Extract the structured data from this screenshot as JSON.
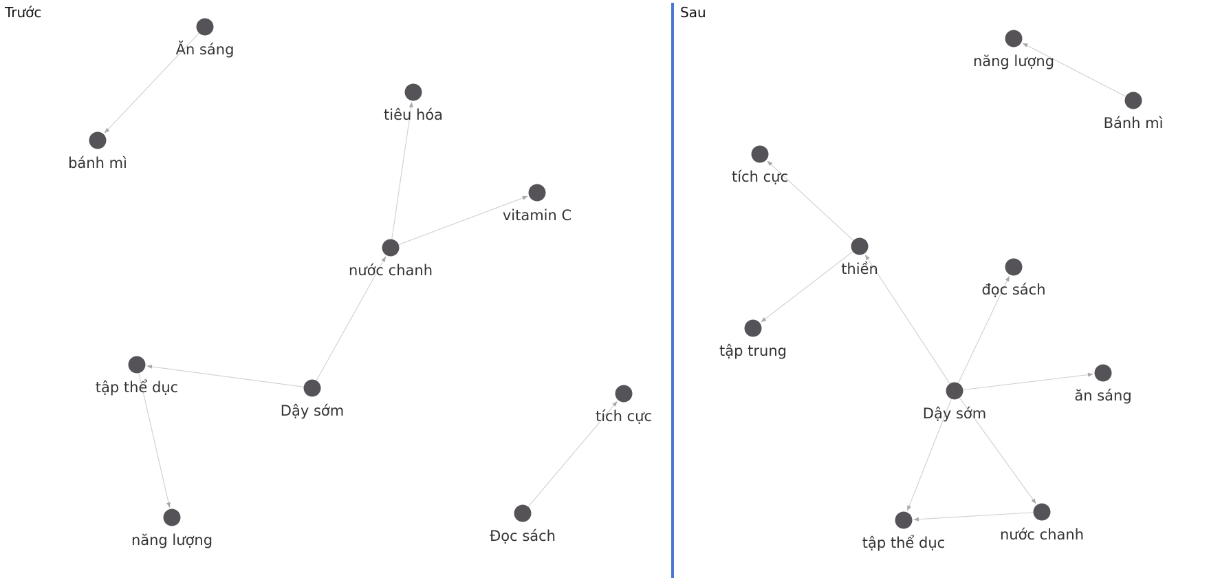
{
  "panels": [
    {
      "id": "left",
      "title": "Trước",
      "nodes": [
        {
          "id": "an-sang",
          "label": "Ăn sáng"
        },
        {
          "id": "banh-mi",
          "label": "bánh mì"
        },
        {
          "id": "tieu-hoa",
          "label": "tiêu hóa"
        },
        {
          "id": "vitamin-c",
          "label": "vitamin C"
        },
        {
          "id": "nuoc-chanh",
          "label": "nước chanh"
        },
        {
          "id": "tap-the-duc",
          "label": "tập thể dục"
        },
        {
          "id": "day-som",
          "label": "Dậy sớm"
        },
        {
          "id": "tich-cuc",
          "label": "tích cực"
        },
        {
          "id": "nang-luong",
          "label": "năng lượng"
        },
        {
          "id": "doc-sach",
          "label": "Đọc sách"
        }
      ],
      "edges": [
        {
          "source": "an-sang",
          "target": "banh-mi"
        },
        {
          "source": "nuoc-chanh",
          "target": "tieu-hoa"
        },
        {
          "source": "nuoc-chanh",
          "target": "vitamin-c"
        },
        {
          "source": "day-som",
          "target": "nuoc-chanh"
        },
        {
          "source": "day-som",
          "target": "tap-the-duc"
        },
        {
          "source": "tap-the-duc",
          "target": "nang-luong"
        },
        {
          "source": "doc-sach",
          "target": "tich-cuc"
        }
      ]
    },
    {
      "id": "right",
      "title": "Sau",
      "nodes": [
        {
          "id": "nang-luong",
          "label": "năng lượng"
        },
        {
          "id": "banh-mi",
          "label": "Bánh mì"
        },
        {
          "id": "tich-cuc",
          "label": "tích cực"
        },
        {
          "id": "thien",
          "label": "thiền"
        },
        {
          "id": "doc-sach",
          "label": "đọc sách"
        },
        {
          "id": "tap-trung",
          "label": "tập trung"
        },
        {
          "id": "an-sang",
          "label": "ăn sáng"
        },
        {
          "id": "day-som",
          "label": "Dậy sớm"
        },
        {
          "id": "nuoc-chanh",
          "label": "nước chanh"
        },
        {
          "id": "tap-the-duc",
          "label": "tập thể dục"
        }
      ],
      "edges": [
        {
          "source": "banh-mi",
          "target": "nang-luong"
        },
        {
          "source": "thien",
          "target": "tich-cuc"
        },
        {
          "source": "thien",
          "target": "tap-trung"
        },
        {
          "source": "day-som",
          "target": "thien"
        },
        {
          "source": "day-som",
          "target": "doc-sach"
        },
        {
          "source": "day-som",
          "target": "an-sang"
        },
        {
          "source": "day-som",
          "target": "tap-the-duc"
        },
        {
          "source": "day-som",
          "target": "nuoc-chanh"
        },
        {
          "source": "nuoc-chanh",
          "target": "tap-the-duc"
        }
      ]
    }
  ],
  "colors": {
    "node": "#555358",
    "edge": "#cfcfcf",
    "divider": "#4a78cf"
  }
}
